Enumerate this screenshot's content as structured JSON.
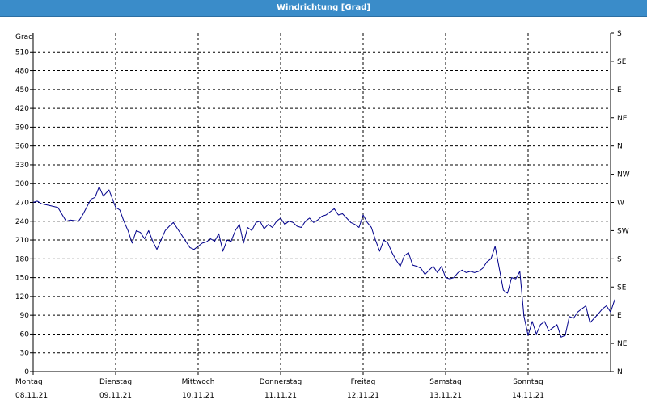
{
  "window": {
    "title": "Windrichtung [Grad]"
  },
  "chart_data": {
    "type": "line",
    "title": "Windrichtung [Grad]",
    "ylabel": "Grad",
    "ylim": [
      0,
      540
    ],
    "y_ticks": [
      0,
      30,
      60,
      90,
      120,
      150,
      180,
      210,
      240,
      270,
      300,
      330,
      360,
      390,
      420,
      450,
      480,
      510
    ],
    "right_axis_labels": [
      "N",
      "NE",
      "E",
      "SE",
      "S",
      "SW",
      "W",
      "NW",
      "N",
      "NE",
      "E",
      "SE",
      "S"
    ],
    "x_categories": [
      {
        "day": "Montag",
        "date": "08.11.21"
      },
      {
        "day": "Dienstag",
        "date": "09.11.21"
      },
      {
        "day": "Mittwoch",
        "date": "10.11.21"
      },
      {
        "day": "Donnerstag",
        "date": "11.11.21"
      },
      {
        "day": "Freitag",
        "date": "12.11.21"
      },
      {
        "day": "Samstag",
        "date": "13.11.21"
      },
      {
        "day": "Sonntag",
        "date": "14.11.21"
      }
    ],
    "grid": true,
    "line_color": "#00008b",
    "series": [
      {
        "x": [
          0.0,
          0.05,
          0.1,
          0.2,
          0.3,
          0.4,
          0.45,
          0.55,
          0.6,
          0.7,
          0.75,
          0.8,
          0.85,
          0.92,
          1.0,
          1.05,
          1.1,
          1.15,
          1.2,
          1.25,
          1.3,
          1.35,
          1.4,
          1.45,
          1.5,
          1.55,
          1.6,
          1.65,
          1.7,
          1.75,
          1.8,
          1.85,
          1.9,
          1.95,
          2.0,
          2.05,
          2.1,
          2.15,
          2.2,
          2.25,
          2.3,
          2.35,
          2.4,
          2.45,
          2.5,
          2.55,
          2.6,
          2.65,
          2.7,
          2.75,
          2.8,
          2.85,
          2.9,
          2.95,
          3.0,
          3.05,
          3.1,
          3.15,
          3.2,
          3.25,
          3.3,
          3.35,
          3.4,
          3.45,
          3.5,
          3.55,
          3.6,
          3.65,
          3.7,
          3.75,
          3.8,
          3.85,
          3.9,
          3.95,
          4.0,
          4.05,
          4.1,
          4.15,
          4.2,
          4.25,
          4.3,
          4.35,
          4.4,
          4.45,
          4.5,
          4.55,
          4.6,
          4.65,
          4.7,
          4.75,
          4.8,
          4.85,
          4.9,
          4.95,
          5.0,
          5.05,
          5.1,
          5.15,
          5.2,
          5.25,
          5.3,
          5.35,
          5.4,
          5.45,
          5.5,
          5.55,
          5.6,
          5.65,
          5.7,
          5.75,
          5.8,
          5.85,
          5.9,
          5.95,
          6.0,
          6.05,
          6.1,
          6.15,
          6.2,
          6.25,
          6.3,
          6.35,
          6.4,
          6.45,
          6.5,
          6.55,
          6.6,
          6.65,
          6.7,
          6.75,
          6.8,
          6.85,
          6.9,
          6.95,
          7.0,
          7.05
        ],
        "y": [
          270,
          272,
          268,
          265,
          262,
          240,
          242,
          240,
          250,
          275,
          278,
          295,
          280,
          290,
          262,
          258,
          240,
          225,
          205,
          225,
          222,
          212,
          225,
          208,
          195,
          210,
          225,
          232,
          238,
          228,
          218,
          208,
          198,
          195,
          200,
          205,
          207,
          212,
          208,
          220,
          192,
          210,
          208,
          225,
          235,
          205,
          230,
          225,
          238,
          240,
          228,
          235,
          230,
          240,
          245,
          235,
          240,
          238,
          232,
          230,
          240,
          245,
          238,
          242,
          248,
          250,
          255,
          260,
          250,
          252,
          245,
          238,
          235,
          230,
          250,
          238,
          230,
          210,
          192,
          210,
          205,
          190,
          178,
          168,
          185,
          190,
          170,
          168,
          165,
          155,
          162,
          168,
          158,
          168,
          150,
          148,
          150,
          158,
          162,
          158,
          160,
          158,
          160,
          165,
          175,
          180,
          200,
          165,
          130,
          125,
          150,
          148,
          160,
          88,
          58,
          80,
          60,
          75,
          80,
          65,
          70,
          75,
          55,
          58,
          88,
          85,
          95,
          100,
          105,
          78,
          85,
          92,
          100,
          105,
          95,
          115
        ]
      }
    ]
  }
}
